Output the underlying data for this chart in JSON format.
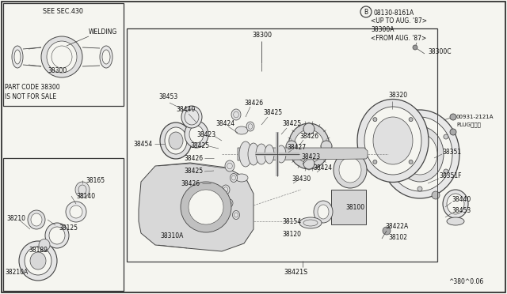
{
  "bg_color": "#f5f5f0",
  "border_color": "#333333",
  "line_color": "#444444",
  "text_color": "#111111",
  "fig_width": 6.4,
  "fig_height": 3.72,
  "footer_text": "^380^0.06",
  "plug_label": "PLUGプラグ",
  "b_circle_label": "B",
  "top_note_lines": [
    "B08130-8161A",
    "<UP TO AUG. '87>",
    "38300A",
    "<FROM AUG. '87>"
  ]
}
